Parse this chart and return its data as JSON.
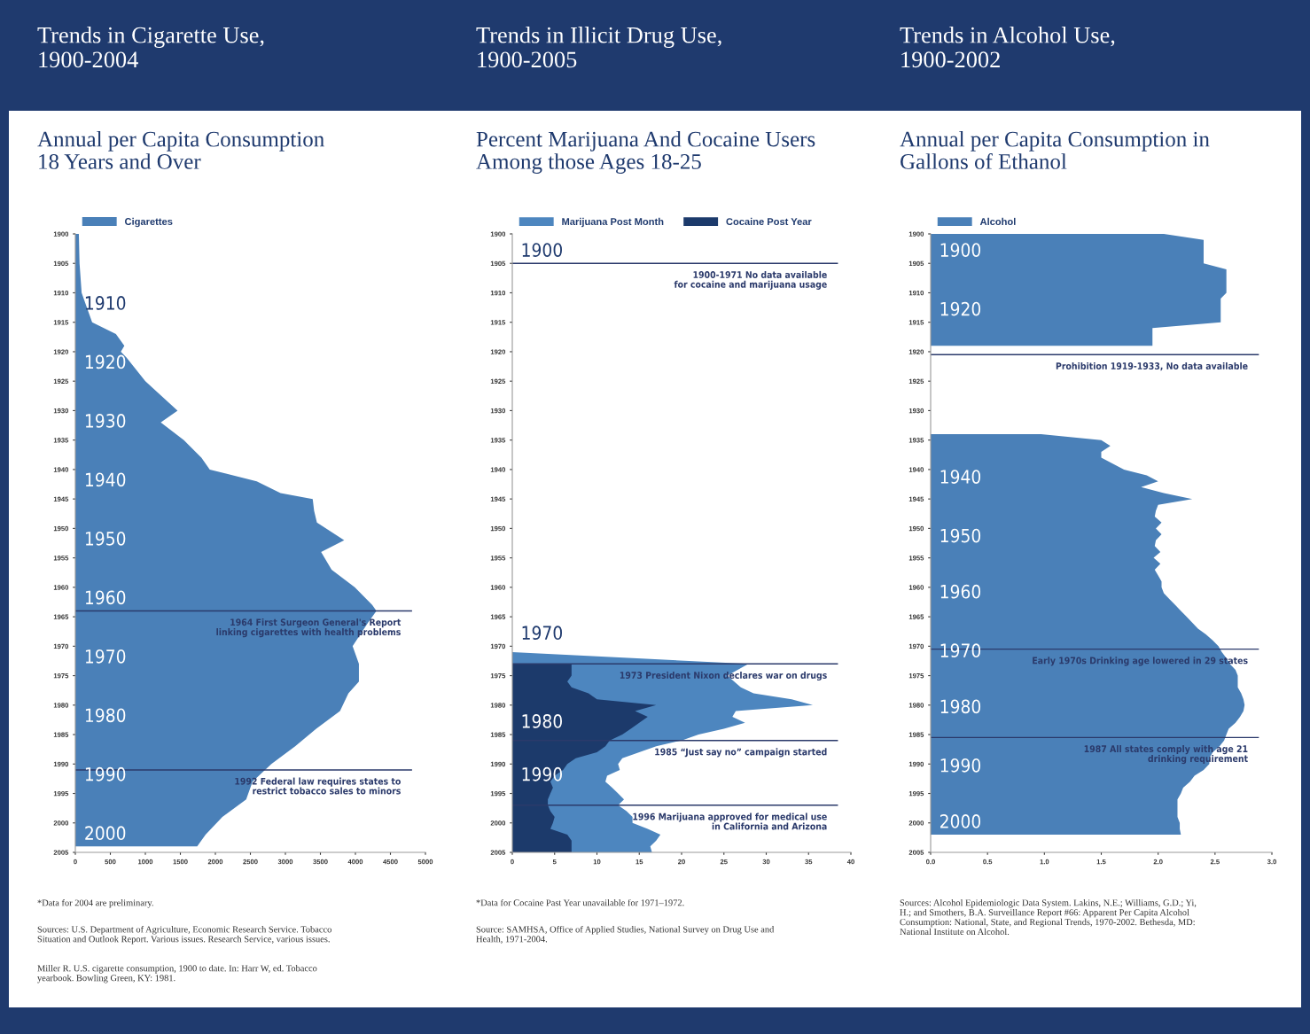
{
  "chart_data": [
    {
      "type": "area",
      "orientation": "horizontal",
      "title": "Trends in Cigarette Use,\n1900-2004",
      "subtitle": "Annual per Capita Consumption\n18 Years and Over",
      "x": [
        1900,
        1905,
        1910,
        1915,
        1917,
        1919,
        1920,
        1921,
        1925,
        1930,
        1932,
        1935,
        1938,
        1940,
        1942,
        1944,
        1945,
        1947,
        1949,
        1952,
        1954,
        1957,
        1960,
        1963,
        1964,
        1966,
        1970,
        1973,
        1976,
        1978,
        1981,
        1984,
        1987,
        1990,
        1993,
        1996,
        1999,
        2002,
        2004
      ],
      "series": [
        {
          "name": "Cigarettes",
          "color": "#4a80b8",
          "values": [
            50,
            60,
            90,
            240,
            580,
            700,
            650,
            730,
            1000,
            1460,
            1220,
            1550,
            1800,
            1920,
            2590,
            2930,
            3390,
            3410,
            3450,
            3840,
            3510,
            3660,
            3990,
            4240,
            4300,
            4180,
            3960,
            4050,
            4050,
            3900,
            3780,
            3440,
            3140,
            2800,
            2530,
            2440,
            2100,
            1860,
            1740
          ]
        }
      ],
      "xlim": [
        0,
        5000
      ],
      "xticks": [
        0,
        500,
        1000,
        1500,
        2000,
        2500,
        3000,
        3500,
        4000,
        4500,
        5000
      ],
      "ylim": [
        2005,
        1900
      ],
      "yticks": [
        1900,
        1905,
        1910,
        1915,
        1920,
        1925,
        1930,
        1935,
        1940,
        1945,
        1950,
        1955,
        1960,
        1965,
        1970,
        1975,
        1980,
        1985,
        1990,
        1995,
        2000,
        2005
      ],
      "ref_lines": [
        {
          "axis": "y",
          "value": 1964,
          "label": "1964 First Surgeon General's Report\nlinking cigarettes with health problems",
          "color": "#2b3a6b"
        },
        {
          "axis": "y",
          "value": 1991,
          "label": "1992 Federal law requires states to\nrestrict tobacco sales to minors",
          "color": "#2b3a6b"
        }
      ],
      "annotations": [
        "1910",
        "1920",
        "1930",
        "1940",
        "1950",
        "1960",
        "1970",
        "1980",
        "1990",
        "2000",
        "*Data for 2004 are preliminary.",
        "Sources: U.S. Department of Agriculture, Economic Research Service. Tobacco\nSituation and Outlook Report. Various issues. Research Service, various issues.",
        "Miller R. U.S. cigarette consumption, 1900 to date. In: Harr W, ed. Tobacco\nyearbook. Bowling Green, KY: 1981."
      ],
      "legend": "top left",
      "grid": false
    },
    {
      "type": "area",
      "orientation": "horizontal",
      "title": "Trends in Illicit Drug Use,\n1900-2005",
      "subtitle": "Percent Marijuana And Cocaine Users\nAmong those Ages 18-25",
      "series": [
        {
          "name": "Marijuana Post Month",
          "color": "#4d86bf",
          "x": [
            1971,
            1973,
            1975,
            1977,
            1978,
            1979,
            1980,
            1981,
            1982,
            1983,
            1984,
            1985,
            1986,
            1987,
            1988,
            1989,
            1990,
            1991,
            1992,
            1993,
            1994,
            1995,
            1996,
            1997,
            1998,
            1999,
            2000,
            2001,
            2002,
            2003,
            2004,
            2005
          ],
          "values": [
            0,
            27.9,
            25.4,
            27,
            28.5,
            33,
            35.5,
            26.4,
            26,
            27.5,
            25,
            22,
            20,
            17,
            15,
            13,
            12.5,
            12.7,
            11.2,
            11,
            11.8,
            12.5,
            13.2,
            12.5,
            13.5,
            14.2,
            14.2,
            16,
            17.5,
            17,
            16.3,
            16.5
          ]
        },
        {
          "name": "Cocaine Post Year",
          "color": "#1c3a6b",
          "x": [
            1973,
            1975,
            1976,
            1977,
            1978,
            1979,
            1980,
            1981,
            1982,
            1983,
            1984,
            1985,
            1986,
            1987,
            1988,
            1989,
            1990,
            1991,
            1992,
            1993,
            1994,
            1995,
            1996,
            1997,
            1998,
            1999,
            2000,
            2001,
            2002,
            2003,
            2004,
            2005
          ],
          "values": [
            7,
            7,
            6.5,
            7,
            9,
            10,
            17,
            14.5,
            16,
            15,
            14,
            13,
            11.5,
            11,
            10,
            7.5,
            6.5,
            6,
            5,
            4.5,
            4.8,
            4.5,
            4.2,
            4.2,
            4.5,
            5,
            4.8,
            4.5,
            6.5,
            7,
            7,
            7
          ]
        }
      ],
      "xlim": [
        0,
        40
      ],
      "xticks": [
        0,
        5,
        10,
        15,
        20,
        25,
        30,
        35,
        40
      ],
      "ylim": [
        2005,
        1900
      ],
      "yticks": [
        1900,
        1905,
        1910,
        1915,
        1920,
        1925,
        1930,
        1935,
        1940,
        1945,
        1950,
        1955,
        1960,
        1965,
        1970,
        1975,
        1980,
        1985,
        1990,
        1995,
        2000,
        2005
      ],
      "ref_lines": [
        {
          "axis": "y",
          "value": 1905,
          "label": "1900-1971 No data available\nfor cocaine and marijuana usage",
          "color": "#2b3a6b"
        },
        {
          "axis": "y",
          "value": 1973,
          "label": "1973 President Nixon declares war on drugs",
          "color": "#2b3a6b"
        },
        {
          "axis": "y",
          "value": 1986,
          "label": "1985 “Just say no” campaign started",
          "color": "#2b3a6b"
        },
        {
          "axis": "y",
          "value": 1997,
          "label": "1996 Marijuana approved for medical use\nin California and Arizona",
          "color": "#2b3a6b"
        }
      ],
      "annotations": [
        "1900",
        "1970",
        "1980",
        "1990",
        "*Data for Cocaine Past Year unavailable for 1971–1972.",
        "Source: SAMHSA, Office of Applied Studies, National Survey on Drug Use and\nHealth, 1971-2004."
      ],
      "legend": "top left",
      "grid": false
    },
    {
      "type": "area",
      "orientation": "horizontal",
      "title": "Trends in Alcohol Use,\n1900-2002",
      "subtitle": "Annual per Capita Consumption in\nGallons of Ethanol",
      "x": [
        1900,
        1901,
        1905,
        1906,
        1910,
        1911,
        1915,
        1916,
        1919,
        1925,
        1934,
        1935,
        1936,
        1937,
        1938,
        1939,
        1940,
        1941,
        1942,
        1943,
        1944,
        1945,
        1946,
        1947,
        1948,
        1949,
        1950,
        1951,
        1952,
        1953,
        1954,
        1955,
        1956,
        1957,
        1958,
        1959,
        1960,
        1961,
        1962,
        1963,
        1964,
        1965,
        1966,
        1967,
        1968,
        1969,
        1970,
        1971,
        1972,
        1973,
        1974,
        1975,
        1976,
        1977,
        1978,
        1979,
        1980,
        1981,
        1982,
        1983,
        1984,
        1985,
        1986,
        1987,
        1988,
        1989,
        1990,
        1991,
        1992,
        1993,
        1994,
        1995,
        1996,
        1997,
        1998,
        1999,
        2000,
        2001,
        2002
      ],
      "series": [
        {
          "name": "Alcohol",
          "color": "#4a80b8",
          "values": [
            2.05,
            2.4,
            2.4,
            2.6,
            2.6,
            2.55,
            2.55,
            1.95,
            1.95,
            null,
            0.97,
            1.5,
            1.58,
            1.5,
            1.5,
            1.6,
            1.7,
            1.9,
            2.0,
            1.85,
            2.05,
            2.3,
            2.0,
            1.98,
            1.97,
            2.03,
            1.98,
            2.03,
            1.98,
            1.97,
            2.02,
            1.96,
            2.02,
            1.97,
            2.0,
            2.03,
            2.03,
            2.05,
            2.1,
            2.15,
            2.2,
            2.25,
            2.3,
            2.35,
            2.42,
            2.48,
            2.53,
            2.56,
            2.6,
            2.63,
            2.68,
            2.7,
            2.7,
            2.7,
            2.73,
            2.75,
            2.76,
            2.75,
            2.72,
            2.68,
            2.62,
            2.6,
            2.58,
            2.54,
            2.48,
            2.45,
            2.45,
            2.4,
            2.32,
            2.28,
            2.22,
            2.2,
            2.17,
            2.17,
            2.17,
            2.17,
            2.19,
            2.19,
            2.2
          ]
        }
      ],
      "xlim": [
        0,
        3
      ],
      "xticks": [
        {
          "value": 0,
          "label": "0.0"
        },
        {
          "value": 0.5,
          "label": "0.5"
        },
        {
          "value": 1,
          "label": "1.0"
        },
        {
          "value": 1.5,
          "label": "1.5"
        },
        {
          "value": 2,
          "label": "2.0"
        },
        {
          "value": 2.5,
          "label": "2.5"
        },
        {
          "value": 3,
          "label": "3.0"
        }
      ],
      "ylim": [
        2005,
        1900
      ],
      "yticks": [
        1900,
        1905,
        1910,
        1915,
        1920,
        1925,
        1930,
        1935,
        1940,
        1945,
        1950,
        1955,
        1960,
        1965,
        1970,
        1975,
        1980,
        1985,
        1990,
        1995,
        2000,
        2005
      ],
      "ref_lines": [
        {
          "axis": "y",
          "value": 1920.5,
          "label": "Prohibition 1919-1933, No data available",
          "color": "#2b3a6b"
        },
        {
          "axis": "y",
          "value": 1970.5,
          "label": "Early 1970s Drinking age lowered in 29 states",
          "color": "#2b3a6b"
        },
        {
          "axis": "y",
          "value": 1985.5,
          "label": "1987 All states comply with age 21\ndrinking requirement",
          "color": "#2b3a6b"
        }
      ],
      "annotations": [
        "1900",
        "1920",
        "1940",
        "1950",
        "1960",
        "1970",
        "1980",
        "1990",
        "2000",
        "Sources: Alcohol Epidemiologic Data System. Lakins, N.E.; Williams, G.D.; Yi,\nH.; and Smothers, B.A. Surveillance Report #66: Apparent Per Capita Alcohol\nConsumption: National, State, and Regional Trends, 1970-2002. Bethesda, MD:\nNational Institute on Alcohol."
      ],
      "legend": "top left",
      "grid": false
    }
  ]
}
